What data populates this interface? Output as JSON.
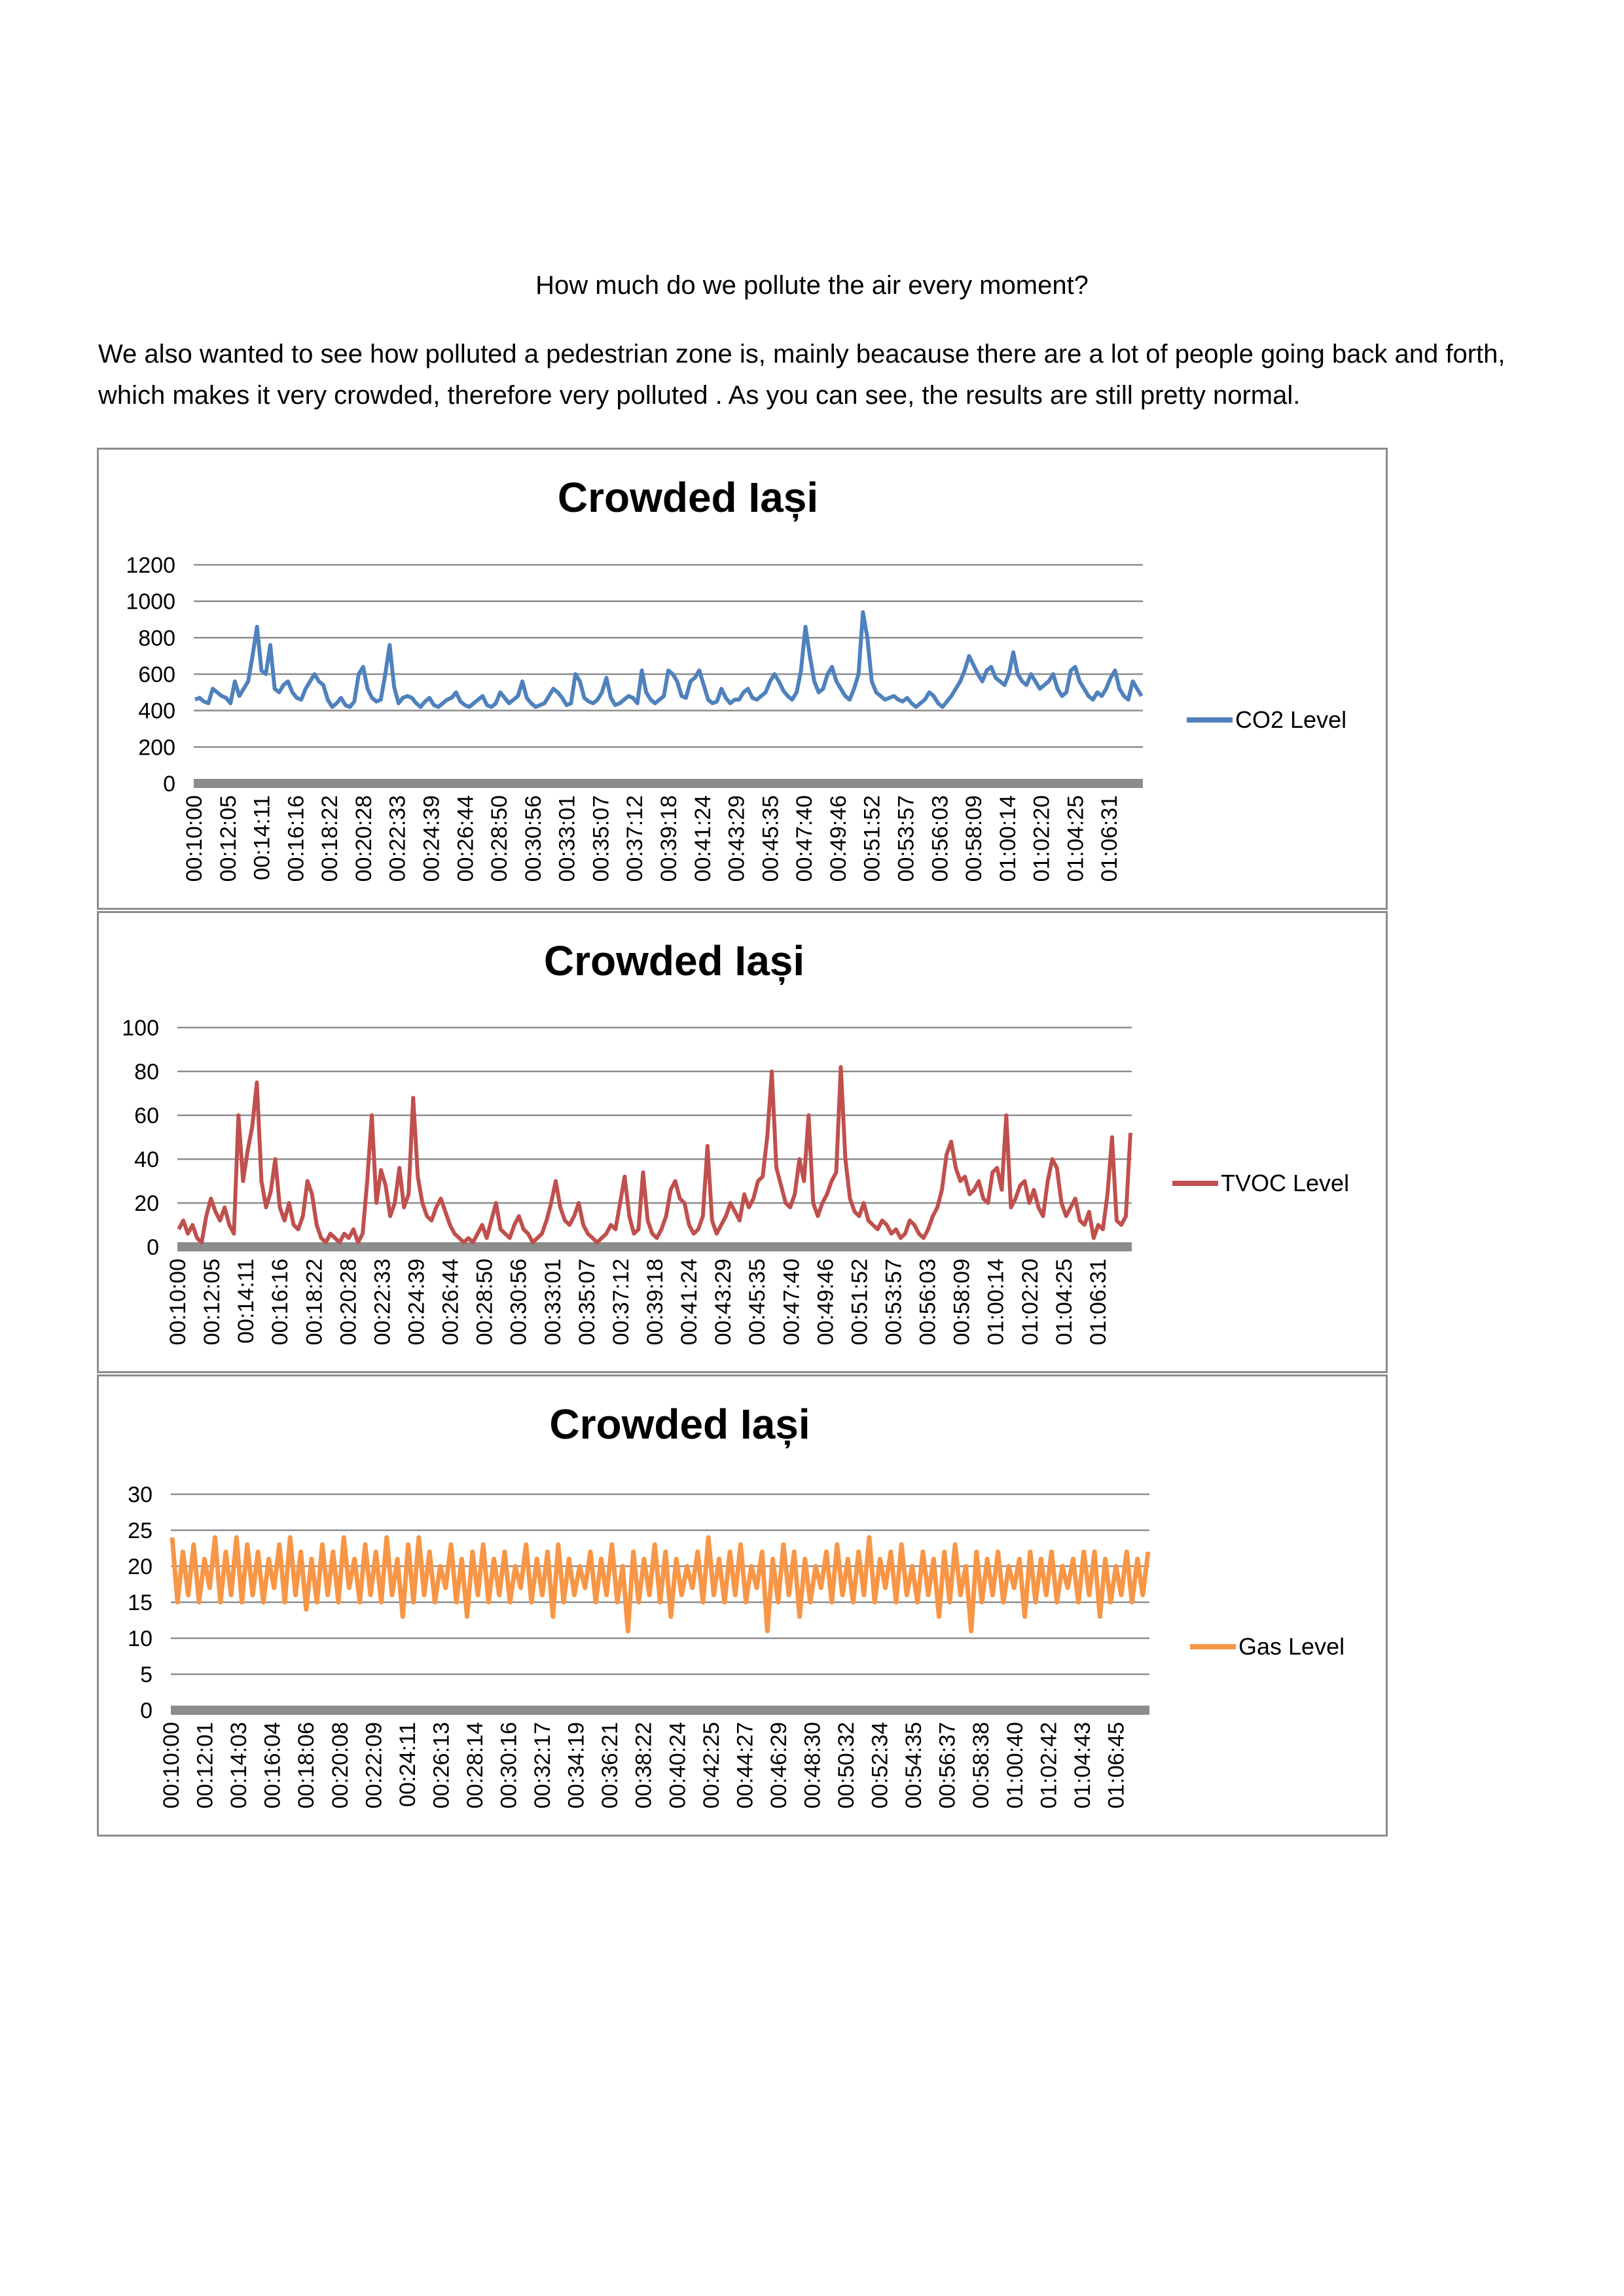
{
  "heading": "How much do we pollute the air every moment?",
  "intro": "We also wanted to see how polluted a pedestrian zone is, mainly beacause there are a lot of people going back and forth, which makes it very crowded, therefore very polluted . As you can see, the results are still pretty normal.",
  "chart_data": [
    {
      "type": "line",
      "title": "Crowded Iași",
      "xlabel": "",
      "ylabel": "",
      "ylim": [
        0,
        1200
      ],
      "yticks": [
        0,
        200,
        400,
        600,
        800,
        1000,
        1200
      ],
      "x_ticks": [
        "00:10:00",
        "00:12:05",
        "00:14:11",
        "00:16:16",
        "00:18:22",
        "00:20:28",
        "00:22:33",
        "00:24:39",
        "00:26:44",
        "00:28:50",
        "00:30:56",
        "00:33:01",
        "00:35:07",
        "00:37:12",
        "00:39:18",
        "00:41:24",
        "00:43:29",
        "00:45:35",
        "00:47:40",
        "00:49:46",
        "00:51:52",
        "00:53:57",
        "00:56:03",
        "00:58:09",
        "01:00:14",
        "01:02:20",
        "01:04:25",
        "01:06:31"
      ],
      "grid": true,
      "legend": "right",
      "color": "#4f81bd",
      "series": [
        {
          "name": "CO2 Level",
          "values": [
            460,
            470,
            450,
            440,
            520,
            500,
            480,
            470,
            440,
            560,
            480,
            520,
            560,
            700,
            860,
            620,
            600,
            760,
            520,
            500,
            540,
            560,
            500,
            470,
            460,
            520,
            560,
            600,
            560,
            540,
            460,
            420,
            440,
            470,
            430,
            420,
            450,
            600,
            640,
            520,
            470,
            450,
            460,
            600,
            760,
            530,
            440,
            470,
            480,
            470,
            440,
            420,
            450,
            470,
            430,
            420,
            440,
            460,
            470,
            500,
            450,
            430,
            420,
            440,
            460,
            480,
            430,
            420,
            440,
            500,
            470,
            440,
            460,
            480,
            560,
            470,
            440,
            420,
            430,
            440,
            480,
            520,
            500,
            470,
            430,
            440,
            600,
            560,
            470,
            450,
            440,
            460,
            500,
            580,
            470,
            430,
            440,
            460,
            480,
            470,
            440,
            620,
            500,
            460,
            440,
            460,
            480,
            620,
            600,
            560,
            480,
            470,
            560,
            580,
            620,
            540,
            460,
            440,
            450,
            520,
            470,
            440,
            460,
            460,
            500,
            520,
            470,
            460,
            480,
            500,
            560,
            600,
            560,
            510,
            480,
            460,
            500,
            620,
            860,
            700,
            560,
            500,
            520,
            600,
            640,
            560,
            520,
            480,
            460,
            520,
            600,
            940,
            800,
            560,
            500,
            480,
            460,
            470,
            480,
            460,
            450,
            470,
            440,
            420,
            440,
            460,
            500,
            480,
            440,
            420,
            450,
            480,
            520,
            560,
            620,
            700,
            650,
            600,
            560,
            620,
            640,
            580,
            560,
            540,
            600,
            720,
            600,
            560,
            540,
            600,
            560,
            520,
            540,
            560,
            600,
            520,
            480,
            500,
            620,
            640,
            560,
            520,
            480,
            460,
            500,
            480,
            520,
            580,
            620,
            520,
            480,
            460,
            560,
            520,
            480
          ]
        }
      ]
    },
    {
      "type": "line",
      "title": "Crowded Iași",
      "xlabel": "",
      "ylabel": "",
      "ylim": [
        0,
        100
      ],
      "yticks": [
        0,
        20,
        40,
        60,
        80,
        100
      ],
      "x_ticks": [
        "00:10:00",
        "00:12:05",
        "00:14:11",
        "00:16:16",
        "00:18:22",
        "00:20:28",
        "00:22:33",
        "00:24:39",
        "00:26:44",
        "00:28:50",
        "00:30:56",
        "00:33:01",
        "00:35:07",
        "00:37:12",
        "00:39:18",
        "00:41:24",
        "00:43:29",
        "00:45:35",
        "00:47:40",
        "00:49:46",
        "00:51:52",
        "00:53:57",
        "00:56:03",
        "00:58:09",
        "01:00:14",
        "01:02:20",
        "01:04:25",
        "01:06:31"
      ],
      "grid": true,
      "legend": "right",
      "color": "#c0504d",
      "series": [
        {
          "name": "TVOC Level",
          "values": [
            8,
            12,
            6,
            10,
            4,
            2,
            14,
            22,
            16,
            12,
            18,
            10,
            6,
            60,
            30,
            44,
            55,
            75,
            30,
            18,
            25,
            40,
            18,
            12,
            20,
            10,
            8,
            14,
            30,
            24,
            10,
            4,
            2,
            6,
            4,
            2,
            6,
            4,
            8,
            2,
            6,
            30,
            60,
            20,
            35,
            28,
            14,
            20,
            36,
            18,
            24,
            68,
            32,
            20,
            14,
            12,
            18,
            22,
            16,
            10,
            6,
            4,
            2,
            4,
            2,
            6,
            10,
            4,
            12,
            20,
            8,
            6,
            4,
            10,
            14,
            8,
            6,
            2,
            4,
            6,
            12,
            20,
            30,
            18,
            12,
            10,
            14,
            20,
            10,
            6,
            4,
            2,
            4,
            6,
            10,
            8,
            20,
            32,
            14,
            6,
            8,
            34,
            12,
            6,
            4,
            8,
            14,
            26,
            30,
            22,
            20,
            10,
            6,
            8,
            14,
            46,
            12,
            6,
            10,
            14,
            20,
            16,
            12,
            24,
            18,
            22,
            30,
            32,
            50,
            80,
            36,
            28,
            20,
            18,
            24,
            40,
            30,
            60,
            20,
            14,
            20,
            24,
            30,
            34,
            82,
            40,
            22,
            16,
            14,
            20,
            12,
            10,
            8,
            12,
            10,
            6,
            8,
            4,
            6,
            12,
            10,
            6,
            4,
            8,
            14,
            18,
            26,
            42,
            48,
            36,
            30,
            32,
            24,
            26,
            30,
            22,
            20,
            34,
            36,
            26,
            60,
            18,
            22,
            28,
            30,
            20,
            26,
            18,
            14,
            30,
            40,
            36,
            20,
            14,
            18,
            22,
            12,
            10,
            16,
            4,
            10,
            8,
            24,
            50,
            12,
            10,
            14,
            52
          ]
        }
      ]
    },
    {
      "type": "line",
      "title": "Crowded Iași",
      "xlabel": "",
      "ylabel": "",
      "ylim": [
        0,
        30
      ],
      "yticks": [
        0,
        5,
        10,
        15,
        20,
        25,
        30
      ],
      "x_ticks": [
        "00:10:00",
        "00:12:01",
        "00:14:03",
        "00:16:04",
        "00:18:06",
        "00:20:08",
        "00:22:09",
        "00:24:11",
        "00:26:13",
        "00:28:14",
        "00:30:16",
        "00:32:17",
        "00:34:19",
        "00:36:21",
        "00:38:22",
        "00:40:24",
        "00:42:25",
        "00:44:27",
        "00:46:29",
        "00:48:30",
        "00:50:32",
        "00:52:34",
        "00:54:35",
        "00:56:37",
        "00:58:38",
        "01:00:40",
        "01:02:42",
        "01:04:43",
        "01:06:45"
      ],
      "grid": true,
      "legend": "right",
      "color": "#f79646",
      "series": [
        {
          "name": "Gas Level",
          "values": [
            24,
            15,
            22,
            16,
            23,
            15,
            21,
            17,
            24,
            15,
            22,
            16,
            24,
            15,
            23,
            16,
            22,
            15,
            21,
            17,
            23,
            15,
            24,
            16,
            22,
            14,
            21,
            15,
            23,
            16,
            22,
            15,
            24,
            17,
            21,
            15,
            23,
            16,
            22,
            15,
            24,
            16,
            21,
            13,
            23,
            15,
            24,
            16,
            22,
            15,
            20,
            17,
            23,
            15,
            21,
            13,
            22,
            16,
            23,
            15,
            21,
            16,
            22,
            15,
            20,
            17,
            23,
            15,
            21,
            16,
            22,
            13,
            23,
            15,
            21,
            16,
            20,
            17,
            22,
            15,
            21,
            16,
            23,
            15,
            20,
            11,
            22,
            15,
            21,
            16,
            23,
            15,
            22,
            13,
            21,
            16,
            20,
            17,
            22,
            15,
            24,
            16,
            21,
            15,
            22,
            16,
            23,
            15,
            20,
            17,
            22,
            11,
            21,
            15,
            23,
            16,
            22,
            13,
            21,
            15,
            20,
            17,
            22,
            15,
            23,
            16,
            21,
            15,
            22,
            16,
            24,
            15,
            21,
            17,
            22,
            15,
            23,
            16,
            20,
            15,
            22,
            16,
            21,
            13,
            22,
            15,
            23,
            16,
            20,
            11,
            22,
            15,
            21,
            16,
            22,
            15,
            20,
            17,
            21,
            13,
            22,
            15,
            21,
            16,
            22,
            15,
            20,
            17,
            21,
            15,
            22,
            16,
            22,
            13,
            21,
            15,
            20,
            16,
            22,
            15,
            21,
            16,
            22
          ]
        }
      ]
    }
  ]
}
